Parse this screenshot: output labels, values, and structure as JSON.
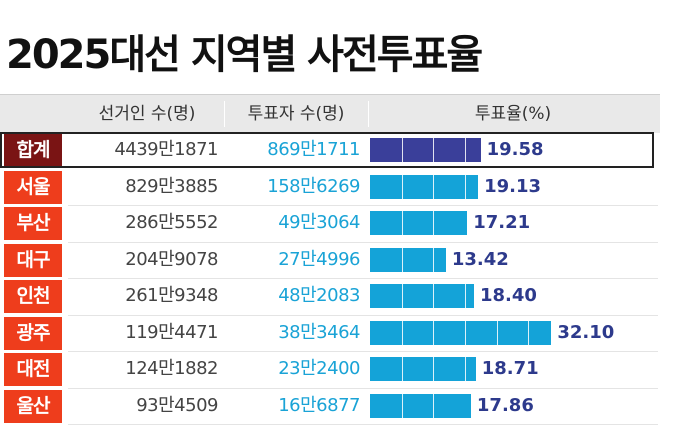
{
  "title": "2025대선 지역별 사전투표율",
  "headers": {
    "voters": "선거인 수(명)",
    "voted": "투표자 수(명)",
    "rate": "투표율(%)"
  },
  "colors": {
    "total_region_bg": "#7a1414",
    "region_bg": "#ee3d1c",
    "total_bar": "#3a3f9a",
    "bar": "#14a3d8",
    "rate_text": "#2d3a8c"
  },
  "chart_data": {
    "type": "bar",
    "title": "2025대선 지역별 사전투표율",
    "xlabel": "",
    "ylabel": "투표율(%)",
    "categories": [
      "합계",
      "서울",
      "부산",
      "대구",
      "인천",
      "광주",
      "대전",
      "울산"
    ],
    "voters": [
      "4439만1871",
      "829만3885",
      "286만5552",
      "204만9078",
      "261만9348",
      "119만4471",
      "124만1882",
      "93만4509"
    ],
    "voted": [
      "869만1711",
      "158만6269",
      "49만3064",
      "27만4996",
      "48만2083",
      "38만3464",
      "23만2400",
      "16만6877"
    ],
    "values": [
      19.58,
      19.13,
      17.21,
      13.42,
      18.4,
      32.1,
      18.71,
      17.86
    ],
    "value_labels": [
      "19.58",
      "19.13",
      "17.21",
      "13.42",
      "18.40",
      "32.10",
      "18.71",
      "17.86"
    ],
    "xlim": [
      0,
      35
    ]
  }
}
